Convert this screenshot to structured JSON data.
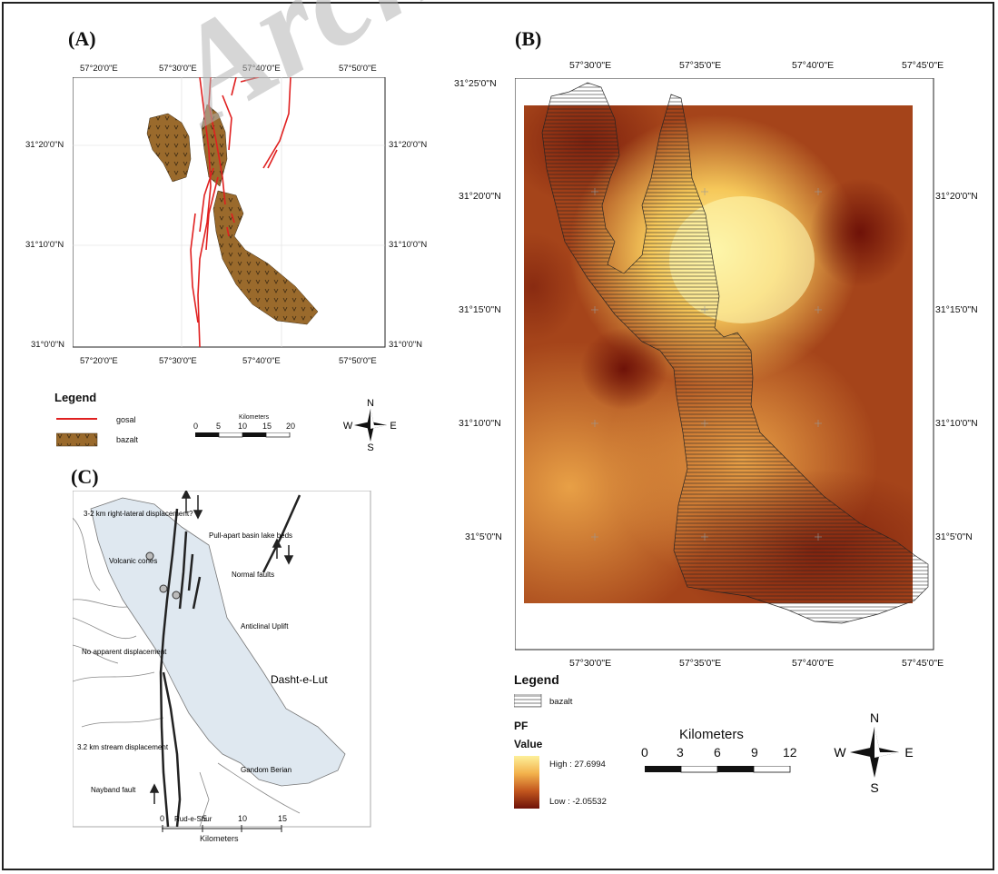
{
  "panel_a": {
    "label": "(A)",
    "top_ticks": [
      "57°20'0\"E",
      "57°30'0\"E",
      "57°40'0\"E",
      "57°50'0\"E"
    ],
    "bottom_ticks": [
      "57°20'0\"E",
      "57°30'0\"E",
      "57°40'0\"E",
      "57°50'0\"E"
    ],
    "left_ticks": [
      "31°20'0\"N",
      "31°10'0\"N",
      "31°0'0\"N"
    ],
    "right_ticks": [
      "31°20'0\"N",
      "31°10'0\"N",
      "31°0'0\"N"
    ],
    "legend": {
      "title": "Legend",
      "items": [
        {
          "label": "gosal",
          "color": "#e02020"
        },
        {
          "label": "bazalt",
          "color": "#9a6a2c"
        }
      ]
    },
    "scale": {
      "unit": "Kilometers",
      "ticks": [
        "0",
        "5",
        "10",
        "15",
        "20"
      ]
    },
    "compass": {
      "n": "N",
      "s": "S",
      "e": "E",
      "w": "W"
    }
  },
  "panel_b": {
    "label": "(B)",
    "top_ticks": [
      "57°30'0\"E",
      "57°35'0\"E",
      "57°40'0\"E",
      "57°45'0\"E"
    ],
    "bottom_ticks": [
      "57°30'0\"E",
      "57°35'0\"E",
      "57°40'0\"E",
      "57°45'0\"E"
    ],
    "left_ticks": [
      "31°25'0\"N",
      "31°20'0\"N",
      "31°15'0\"N",
      "31°10'0\"N",
      "31°5'0\"N"
    ],
    "right_ticks": [
      "31°20'0\"N",
      "31°15'0\"N",
      "31°10'0\"N",
      "31°5'0\"N"
    ],
    "legend": {
      "title": "Legend",
      "bazalt_label": "bazalt",
      "pf_label": "PF",
      "value_label": "Value",
      "high": "High : 27.6994",
      "low": "Low : -2.05532"
    },
    "scale": {
      "unit": "Kilometers",
      "ticks": [
        "0",
        "3",
        "6",
        "9",
        "12"
      ]
    },
    "compass": {
      "n": "N",
      "s": "S",
      "e": "E",
      "w": "W"
    }
  },
  "panel_c": {
    "label": "(C)",
    "annotations": [
      "3-2 km right-lateral displacement?",
      "Pull-apart basin lake beds",
      "Volcanic cones",
      "Normal faults",
      "Anticlinal Uplift",
      "No apparent displacement",
      "Dasht-e-Lut",
      "3.2 km stream displacement",
      "Gandom Berian",
      "Nayband fault",
      "Rud-e-Shur"
    ],
    "scale": {
      "ticks": [
        "0",
        "5",
        "10",
        "15"
      ],
      "unit": "Kilometers"
    }
  },
  "watermark": "Archive of",
  "colors": {
    "fault_red": "#e02020",
    "basalt_brown": "#9a6a2c",
    "pf_high": "#fbe88a",
    "pf_low": "#6e1208",
    "lut_blue": "#dfe8f0"
  }
}
